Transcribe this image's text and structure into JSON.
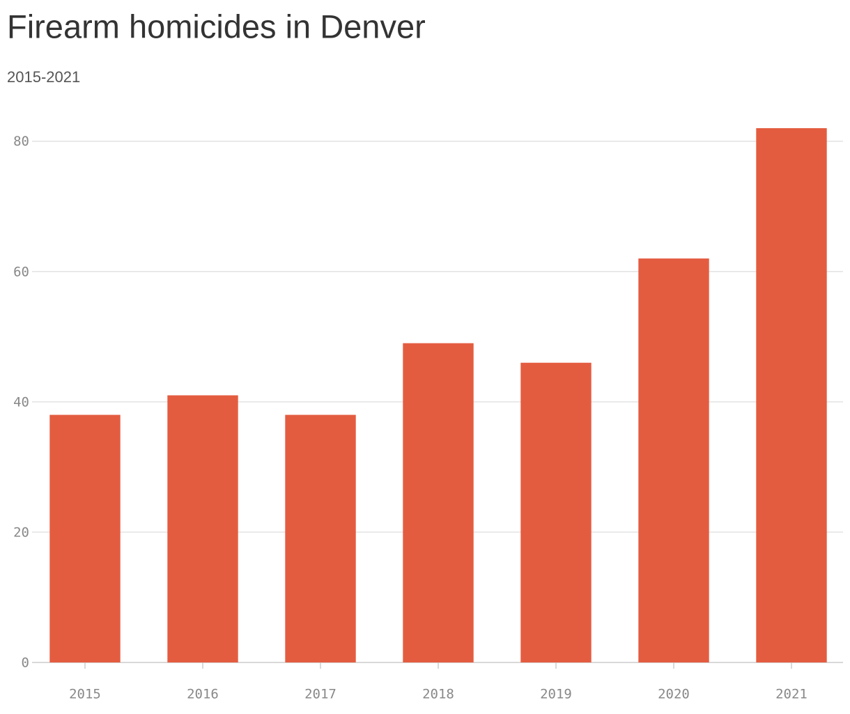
{
  "chart_data": {
    "type": "bar",
    "title": "Firearm homicides in Denver",
    "subtitle": "2015-2021",
    "categories": [
      "2015",
      "2016",
      "2017",
      "2018",
      "2019",
      "2020",
      "2021"
    ],
    "values": [
      38,
      41,
      38,
      49,
      46,
      62,
      82
    ],
    "color": "#e45c40",
    "ylim": [
      0,
      82
    ],
    "yticks": [
      0,
      20,
      40,
      60,
      80
    ],
    "grid": true
  }
}
